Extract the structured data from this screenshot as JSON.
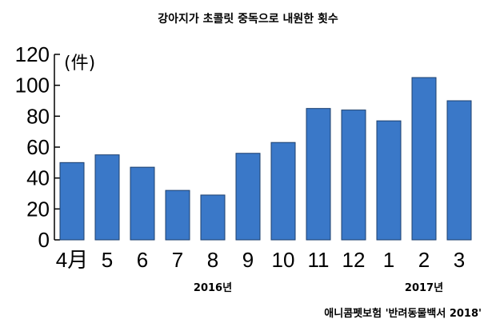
{
  "chart_data": {
    "type": "bar",
    "title": "강아지가 초콜릿 중독으로 내원한 횟수",
    "unit_label": "(件)",
    "categories": [
      "4月",
      "5",
      "6",
      "7",
      "8",
      "9",
      "10",
      "11",
      "12",
      "1",
      "2",
      "3"
    ],
    "values": [
      50,
      55,
      47,
      32,
      29,
      56,
      63,
      85,
      84,
      77,
      105,
      90
    ],
    "y_ticks": [
      "0",
      "20",
      "40",
      "60",
      "80",
      "100",
      "120"
    ],
    "ylim": [
      0,
      120
    ],
    "year_labels": [
      {
        "text": "2016년",
        "under_category": "8"
      },
      {
        "text": "2017년",
        "under_category": "2"
      }
    ],
    "source": "애니콤펫보험 '반려동물백서 2018'",
    "bar_color": "#3a78c8",
    "bar_edge_color": "#1c3f6e",
    "grid": false
  }
}
